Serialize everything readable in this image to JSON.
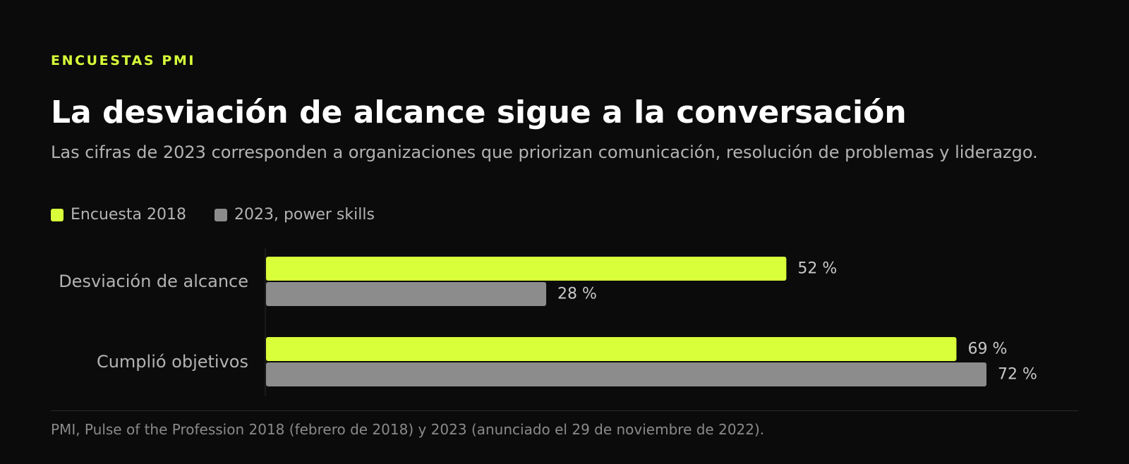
{
  "eyebrow": "ENCUESTAS PMI",
  "title": "La desviación de alcance sigue a la conversación",
  "subtitle": "Las cifras de 2023 corresponden a organizaciones que priorizan comunicación, resolución de problemas y liderazgo.",
  "source": "PMI, Pulse of the Profession 2018 (febrero de 2018) y 2023 (anunciado el 29 de noviembre de 2022).",
  "colors": {
    "background": "#0b0b0b",
    "accent": "#d8ff3a",
    "series_2023": "#8c8c8c",
    "text_muted": "#b3b3b3"
  },
  "chart_data": {
    "type": "bar",
    "orientation": "horizontal",
    "categories": [
      "Desviación de alcance",
      "Cumplió objetivos"
    ],
    "series": [
      {
        "name": "Encuesta 2018",
        "values": [
          52,
          69
        ],
        "labels": [
          "52 %",
          "69 %"
        ],
        "color": "#d8ff3a"
      },
      {
        "name": "2023, power skills",
        "values": [
          28,
          72
        ],
        "labels": [
          "28 %",
          "72 %"
        ],
        "color": "#8c8c8c"
      }
    ],
    "xlim": [
      0,
      72
    ],
    "unit": "%",
    "grid": false,
    "legend_position": "top-left"
  }
}
